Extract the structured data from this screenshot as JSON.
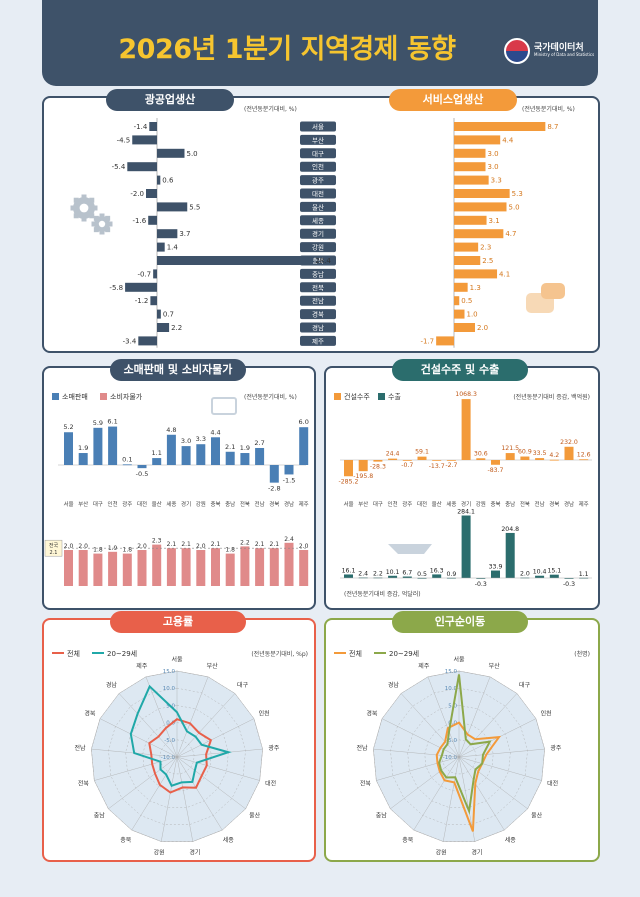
{
  "header": {
    "title": "2026년 1분기 지역경제 동향",
    "org": "국가데이터처",
    "org_en": "Ministry of Data and Statistics"
  },
  "colors": {
    "navy": "#3e5269",
    "orange": "#f39a3a",
    "blue": "#4a7fb5",
    "pink": "#e08a8a",
    "teal": "#2b6d6d",
    "red": "#e8604a",
    "cyan": "#20a8a8",
    "green": "#8ca84a",
    "steel": "#3e5269"
  },
  "regions": [
    "서울",
    "부산",
    "대구",
    "인천",
    "광주",
    "대전",
    "울산",
    "세종",
    "경기",
    "강원",
    "충북",
    "충남",
    "전북",
    "전남",
    "경북",
    "경남",
    "제주"
  ],
  "panel1": {
    "left_title": "광공업생산",
    "left_unit": "(전년동분기대비, %)",
    "right_title": "서비스업생산",
    "right_unit": "(전년동분기대비, %)"
  },
  "panel2": {
    "title": "소매판매 및 소비자물가",
    "unit": "(전년동분기대비, %)",
    "legend1": "소매판매",
    "legend2": "소비자물가",
    "national_label": "전국",
    "national_value": "2.1"
  },
  "panel3": {
    "title": "건설수주 및 수출",
    "unit1": "(전년동분기대비 증감, 백억원)",
    "unit2": "(전년동분기대비 증감, 억달러)",
    "legend1": "건설수주",
    "legend2": "수출"
  },
  "panel4": {
    "title": "고용률",
    "unit": "(전년동분기대비, %p)",
    "legend1": "전체",
    "legend2": "20~29세",
    "rings": [
      "-10.0",
      "-5.0",
      "0.0",
      "5.0",
      "10.0",
      "15.0"
    ]
  },
  "panel5": {
    "title": "인구순이동",
    "unit": "(천명)",
    "legend1": "전체",
    "legend2": "20~29세",
    "rings": [
      "-10.0",
      "-5.0",
      "0.0",
      "5.0",
      "10.0",
      "15.0"
    ]
  },
  "chart_data": [
    {
      "type": "bar",
      "title": "광공업생산",
      "categories": [
        "서울",
        "부산",
        "대구",
        "인천",
        "광주",
        "대전",
        "울산",
        "세종",
        "경기",
        "강원",
        "충북",
        "충남",
        "전북",
        "전남",
        "경북",
        "경남",
        "제주"
      ],
      "values": [
        -1.4,
        -4.5,
        5.0,
        -5.4,
        0.6,
        -2.0,
        5.5,
        -1.6,
        3.7,
        1.4,
        28.4,
        -0.7,
        -5.8,
        -1.2,
        0.7,
        2.2,
        -3.4
      ]
    },
    {
      "type": "bar",
      "title": "서비스업생산",
      "categories": [
        "서울",
        "부산",
        "대구",
        "인천",
        "광주",
        "대전",
        "울산",
        "세종",
        "경기",
        "강원",
        "충북",
        "충남",
        "전북",
        "전남",
        "경북",
        "경남",
        "제주"
      ],
      "values": [
        8.7,
        4.4,
        3.0,
        3.0,
        3.3,
        5.3,
        5.0,
        3.1,
        4.7,
        2.3,
        2.5,
        4.1,
        1.3,
        0.5,
        1.0,
        2.0,
        -1.7
      ]
    },
    {
      "type": "bar",
      "title": "소매판매",
      "categories": [
        "서울",
        "부산",
        "대구",
        "인천",
        "광주",
        "대전",
        "울산",
        "세종",
        "경기",
        "강원",
        "충북",
        "충남",
        "전북",
        "전남",
        "경북",
        "경남",
        "제주"
      ],
      "values": [
        5.2,
        1.9,
        5.9,
        6.1,
        0.1,
        -0.5,
        1.1,
        4.8,
        3.0,
        3.3,
        4.4,
        2.1,
        1.9,
        2.7,
        -2.8,
        -1.5,
        6.0
      ]
    },
    {
      "type": "bar",
      "title": "소비자물가",
      "categories": [
        "서울",
        "부산",
        "대구",
        "인천",
        "광주",
        "대전",
        "울산",
        "세종",
        "경기",
        "강원",
        "충북",
        "충남",
        "전북",
        "전남",
        "경북",
        "경남",
        "제주"
      ],
      "values": [
        2.0,
        2.0,
        1.8,
        1.9,
        1.8,
        2.0,
        2.3,
        2.1,
        2.1,
        2.0,
        2.1,
        1.8,
        2.2,
        2.1,
        2.1,
        2.4,
        2.0
      ]
    },
    {
      "type": "bar",
      "title": "건설수주",
      "categories": [
        "서울",
        "부산",
        "대구",
        "인천",
        "광주",
        "대전",
        "울산",
        "세종",
        "경기",
        "강원",
        "충북",
        "충남",
        "전북",
        "전남",
        "경북",
        "경남",
        "제주"
      ],
      "values": [
        -285.2,
        -195.8,
        -28.3,
        24.4,
        -0.7,
        59.1,
        -13.7,
        -2.7,
        1068.3,
        30.6,
        -83.7,
        121.5,
        60.9,
        33.5,
        4.2,
        232.0,
        12.6
      ]
    },
    {
      "type": "bar",
      "title": "수출",
      "categories": [
        "서울",
        "부산",
        "대구",
        "인천",
        "광주",
        "대전",
        "울산",
        "세종",
        "경기",
        "강원",
        "충북",
        "충남",
        "전북",
        "전남",
        "경북",
        "경남",
        "제주"
      ],
      "values": [
        16.1,
        2.4,
        2.2,
        10.1,
        6.7,
        0.5,
        16.3,
        0.9,
        284.1,
        -0.3,
        33.9,
        204.8,
        2.0,
        10.4,
        15.1,
        -0.3,
        1.1
      ]
    },
    {
      "type": "line",
      "title": "고용률",
      "categories": [
        "서울",
        "부산",
        "대구",
        "인천",
        "광주",
        "대전",
        "울산",
        "세종",
        "경기",
        "강원",
        "충북",
        "충남",
        "전북",
        "전남",
        "경북",
        "경남",
        "제주"
      ],
      "series": [
        {
          "name": "전체",
          "values": [
            1.0,
            0.5,
            -0.5,
            1.0,
            -1.5,
            -1.0,
            -1.0,
            0.5,
            -1.0,
            0.5,
            -0.5,
            -2.0,
            -2.5,
            -2.5,
            -1.0,
            -2.0,
            -1.0
          ]
        },
        {
          "name": "20~29세",
          "values": [
            3.0,
            -2.0,
            -2.0,
            -2.0,
            5.0,
            -4.0,
            -3.5,
            -1.5,
            -2.5,
            -1.5,
            -4.0,
            -4.0,
            -5.0,
            2.5,
            5.0,
            7.0,
            12.0
          ]
        }
      ],
      "ylim": [
        -10,
        15
      ]
    },
    {
      "type": "line",
      "title": "인구순이동",
      "categories": [
        "서울",
        "부산",
        "대구",
        "인천",
        "광주",
        "대전",
        "울산",
        "세종",
        "경기",
        "강원",
        "충북",
        "충남",
        "전북",
        "전남",
        "경북",
        "경남",
        "제주"
      ],
      "series": [
        {
          "name": "전체",
          "values": [
            0.0,
            -3.0,
            -3.0,
            3.0,
            -2.0,
            -3.0,
            -3.0,
            -1.0,
            12.0,
            -2.5,
            -2.0,
            -3.0,
            -3.5,
            -3.5,
            -4.0,
            -4.0,
            -1.0
          ]
        },
        {
          "name": "20~29세",
          "values": [
            14.0,
            -4.5,
            -5.0,
            0.0,
            -3.0,
            -3.0,
            -4.0,
            -2.0,
            6.0,
            -4.0,
            -3.0,
            -3.5,
            -4.0,
            -5.0,
            -5.0,
            -5.0,
            -2.0
          ]
        }
      ],
      "ylim": [
        -10,
        15
      ]
    }
  ]
}
